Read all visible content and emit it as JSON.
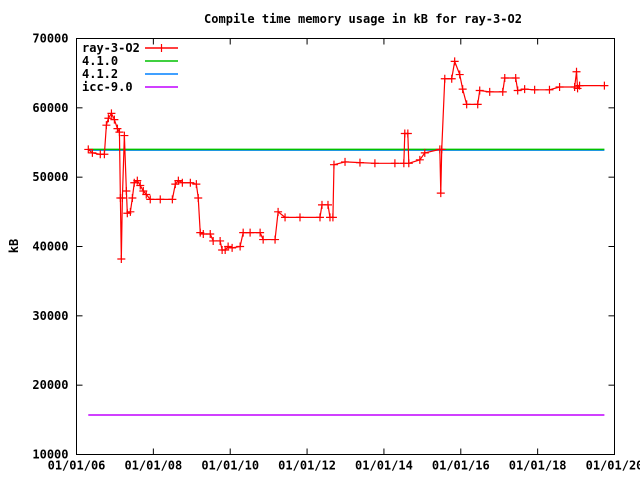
{
  "chart_data": {
    "type": "line",
    "title": "Compile time memory usage in kB for ray-3-O2",
    "xlabel": "",
    "ylabel": "kB",
    "xlim": [
      "2006-01-01",
      "2020-01-01"
    ],
    "ylim": [
      10000,
      70000
    ],
    "x_ticks": [
      "01/01/06",
      "01/01/08",
      "01/01/10",
      "01/01/12",
      "01/01/14",
      "01/01/16",
      "01/01/18",
      "01/01/20"
    ],
    "y_ticks": [
      "10000",
      "20000",
      "30000",
      "40000",
      "50000",
      "60000",
      "70000"
    ],
    "grid": false,
    "legend_position": "top-left",
    "series": [
      {
        "name": "ray-3-O2",
        "color": "#ff0000",
        "style": "linespoints",
        "x": [
          "2006-04-23",
          "2006-06-01",
          "2006-08-15",
          "2006-09-23",
          "2006-10-12",
          "2006-10-31",
          "2006-11-29",
          "2006-12-27",
          "2007-01-25",
          "2007-02-13",
          "2007-02-22",
          "2007-03-03",
          "2007-03-13",
          "2007-04-01",
          "2007-04-20",
          "2007-04-29",
          "2007-05-28",
          "2007-06-16",
          "2007-07-04",
          "2007-08-02",
          "2007-08-30",
          "2007-09-28",
          "2007-10-26",
          "2007-12-03",
          "2008-03-07",
          "2008-06-30",
          "2008-07-28",
          "2008-08-26",
          "2008-10-03",
          "2008-12-18",
          "2009-02-13",
          "2009-03-03",
          "2009-03-22",
          "2009-04-20",
          "2009-06-25",
          "2009-07-23",
          "2009-09-27",
          "2009-10-16",
          "2009-11-14",
          "2009-12-12",
          "2010-01-19",
          "2010-04-05",
          "2010-05-04",
          "2010-07-09",
          "2010-10-12",
          "2010-11-10",
          "2011-03-03",
          "2011-04-01",
          "2011-06-06",
          "2011-10-26",
          "2012-05-03",
          "2012-05-22",
          "2012-07-18",
          "2012-08-06",
          "2012-09-03",
          "2012-09-13",
          "2012-12-27",
          "2013-05-18",
          "2013-10-07",
          "2014-04-15",
          "2014-07-09",
          "2014-07-18",
          "2014-08-16",
          "2014-08-25",
          "2014-12-08",
          "2015-01-24",
          "2015-06-16",
          "2015-06-25",
          "2015-07-04",
          "2015-08-02",
          "2015-10-07",
          "2015-11-04",
          "2015-12-22",
          "2016-01-19",
          "2016-02-26",
          "2016-06-10",
          "2016-06-29",
          "2016-10-02",
          "2017-02-03",
          "2017-02-22",
          "2017-06-06",
          "2017-06-25",
          "2017-08-30",
          "2017-12-03",
          "2018-04-23",
          "2018-07-28",
          "2018-12-18",
          "2019-01-05",
          "2019-01-15",
          "2019-02-03",
          "2019-09-27"
        ],
        "y": [
          54000,
          53500,
          53300,
          53300,
          57500,
          58500,
          59200,
          58300,
          57000,
          56500,
          47000,
          38200,
          47000,
          56000,
          48000,
          44800,
          45000,
          47000,
          49200,
          49500,
          48800,
          48000,
          47500,
          46800,
          46800,
          46800,
          49000,
          49500,
          49200,
          49200,
          49000,
          47000,
          42000,
          41800,
          41800,
          40800,
          40800,
          39500,
          39500,
          40000,
          39800,
          40000,
          42000,
          42000,
          42000,
          41000,
          41000,
          45000,
          44200,
          44200,
          44200,
          46000,
          46000,
          44200,
          44200,
          51800,
          52200,
          52100,
          52000,
          52000,
          52000,
          56300,
          56300,
          52000,
          52500,
          53500,
          54000,
          47700,
          54000,
          64200,
          64200,
          66700,
          64800,
          62700,
          60500,
          60500,
          62500,
          62300,
          62300,
          64300,
          64300,
          62500,
          62700,
          62600,
          62600,
          63000,
          63000,
          65200,
          62800,
          63200,
          63200
        ]
      },
      {
        "name": "4.1.0",
        "color": "#00c000",
        "style": "line",
        "x": [
          "2006-04-23",
          "2019-09-27"
        ],
        "y": [
          54000,
          54000
        ]
      },
      {
        "name": "4.1.2",
        "color": "#0080ff",
        "style": "line",
        "x": [
          "2006-04-23",
          "2019-09-27"
        ],
        "y": [
          53900,
          53900
        ]
      },
      {
        "name": "icc-9.0",
        "color": "#c000ff",
        "style": "line",
        "x": [
          "2006-04-23",
          "2019-09-27"
        ],
        "y": [
          15700,
          15700
        ]
      }
    ]
  }
}
